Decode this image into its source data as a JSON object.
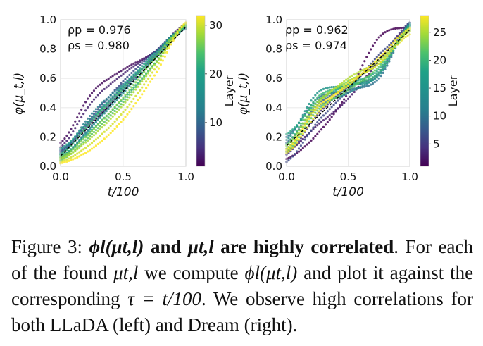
{
  "chart_data": [
    {
      "type": "line",
      "panel": "left",
      "xlabel": "t/100",
      "ylabel": "φ(μ_t,l)",
      "xlim": [
        0,
        1
      ],
      "ylim": [
        0,
        1
      ],
      "x_ticks": [
        "0.0",
        "0.5",
        "1.0"
      ],
      "y_ticks": [
        "0.0",
        "0.2",
        "0.4",
        "0.6",
        "0.8",
        "1.0"
      ],
      "grid": true,
      "annotations": [
        "ρp = 0.976",
        "ρs = 0.980"
      ],
      "colorbar": {
        "label": "Layer",
        "ticks": [
          "10",
          "20",
          "30"
        ],
        "range": [
          1,
          32
        ],
        "colormap": "viridis"
      },
      "reference_line": {
        "style": "dashed",
        "color": "#000000",
        "x": [
          0,
          1
        ],
        "y": [
          0.07,
          0.95
        ]
      },
      "series": [
        {
          "layer": 2,
          "x": [
            0,
            0.25,
            0.5,
            0.75,
            1.0
          ],
          "y": [
            0.16,
            0.5,
            0.66,
            0.78,
            0.97
          ]
        },
        {
          "layer": 4,
          "x": [
            0,
            0.25,
            0.5,
            0.75,
            1.0
          ],
          "y": [
            0.13,
            0.44,
            0.63,
            0.78,
            0.96
          ]
        },
        {
          "layer": 6,
          "x": [
            0,
            0.25,
            0.5,
            0.75,
            1.0
          ],
          "y": [
            0.1,
            0.3,
            0.52,
            0.75,
            0.95
          ]
        },
        {
          "layer": 8,
          "x": [
            0,
            0.25,
            0.5,
            0.75,
            1.0
          ],
          "y": [
            0.08,
            0.34,
            0.58,
            0.78,
            0.96
          ]
        },
        {
          "layer": 10,
          "x": [
            0,
            0.25,
            0.5,
            0.75,
            1.0
          ],
          "y": [
            0.11,
            0.32,
            0.54,
            0.74,
            0.95
          ]
        },
        {
          "layer": 12,
          "x": [
            0,
            0.25,
            0.5,
            0.75,
            1.0
          ],
          "y": [
            0.06,
            0.28,
            0.52,
            0.76,
            0.96
          ]
        },
        {
          "layer": 14,
          "x": [
            0,
            0.25,
            0.5,
            0.75,
            1.0
          ],
          "y": [
            0.09,
            0.36,
            0.56,
            0.74,
            0.94
          ]
        },
        {
          "layer": 16,
          "x": [
            0,
            0.25,
            0.5,
            0.75,
            1.0
          ],
          "y": [
            0.05,
            0.27,
            0.5,
            0.73,
            0.95
          ]
        },
        {
          "layer": 18,
          "x": [
            0,
            0.25,
            0.5,
            0.75,
            1.0
          ],
          "y": [
            0.12,
            0.33,
            0.55,
            0.77,
            0.96
          ]
        },
        {
          "layer": 20,
          "x": [
            0,
            0.25,
            0.5,
            0.75,
            1.0
          ],
          "y": [
            0.07,
            0.25,
            0.46,
            0.7,
            0.95
          ]
        },
        {
          "layer": 22,
          "x": [
            0,
            0.25,
            0.5,
            0.75,
            1.0
          ],
          "y": [
            0.08,
            0.31,
            0.53,
            0.75,
            0.96
          ]
        },
        {
          "layer": 24,
          "x": [
            0,
            0.25,
            0.5,
            0.75,
            1.0
          ],
          "y": [
            0.04,
            0.22,
            0.44,
            0.7,
            0.96
          ]
        },
        {
          "layer": 26,
          "x": [
            0,
            0.25,
            0.5,
            0.75,
            1.0
          ],
          "y": [
            0.06,
            0.24,
            0.47,
            0.73,
            0.97
          ]
        },
        {
          "layer": 28,
          "x": [
            0,
            0.25,
            0.5,
            0.75,
            1.0
          ],
          "y": [
            0.05,
            0.2,
            0.42,
            0.69,
            0.97
          ]
        },
        {
          "layer": 30,
          "x": [
            0,
            0.25,
            0.5,
            0.75,
            1.0
          ],
          "y": [
            0.03,
            0.16,
            0.37,
            0.66,
            0.98
          ]
        },
        {
          "layer": 32,
          "x": [
            0,
            0.25,
            0.5,
            0.75,
            1.0
          ],
          "y": [
            0.02,
            0.12,
            0.32,
            0.62,
            0.98
          ]
        }
      ]
    },
    {
      "type": "line",
      "panel": "right",
      "xlabel": "t/100",
      "ylabel": "φ(μ_t,l)",
      "xlim": [
        0,
        1
      ],
      "ylim": [
        0,
        1
      ],
      "x_ticks": [
        "0.0",
        "0.5",
        "1.0"
      ],
      "y_ticks": [
        "0.0",
        "0.2",
        "0.4",
        "0.6",
        "0.8",
        "1.0"
      ],
      "grid": true,
      "annotations": [
        "ρp = 0.962",
        "ρs = 0.974"
      ],
      "colorbar": {
        "label": "Layer",
        "ticks": [
          "5",
          "10",
          "15",
          "20",
          "25"
        ],
        "range": [
          1,
          28
        ],
        "colormap": "viridis"
      },
      "reference_line": {
        "style": "dashed",
        "color": "#000000",
        "x": [
          0,
          1
        ],
        "y": [
          0.14,
          0.93
        ]
      },
      "series": [
        {
          "layer": 1,
          "x": [
            0,
            0.25,
            0.5,
            0.75,
            1.0
          ],
          "y": [
            0.05,
            0.22,
            0.5,
            0.88,
            0.95
          ]
        },
        {
          "layer": 3,
          "x": [
            0,
            0.25,
            0.5,
            0.75,
            1.0
          ],
          "y": [
            0.1,
            0.28,
            0.46,
            0.72,
            0.96
          ]
        },
        {
          "layer": 5,
          "x": [
            0,
            0.25,
            0.5,
            0.75,
            1.0
          ],
          "y": [
            0.08,
            0.35,
            0.55,
            0.72,
            0.98
          ]
        },
        {
          "layer": 7,
          "x": [
            0,
            0.25,
            0.5,
            0.75,
            1.0
          ],
          "y": [
            0.03,
            0.3,
            0.52,
            0.76,
            0.93
          ]
        },
        {
          "layer": 9,
          "x": [
            0,
            0.25,
            0.5,
            0.75,
            1.0
          ],
          "y": [
            0.16,
            0.42,
            0.54,
            0.64,
            0.98
          ]
        },
        {
          "layer": 11,
          "x": [
            0,
            0.25,
            0.5,
            0.75,
            1.0
          ],
          "y": [
            0.2,
            0.46,
            0.52,
            0.6,
            0.97
          ]
        },
        {
          "layer": 13,
          "x": [
            0,
            0.25,
            0.5,
            0.75,
            1.0
          ],
          "y": [
            0.12,
            0.4,
            0.5,
            0.63,
            0.96
          ]
        },
        {
          "layer": 15,
          "x": [
            0,
            0.25,
            0.5,
            0.75,
            1.0
          ],
          "y": [
            0.18,
            0.5,
            0.55,
            0.62,
            0.97
          ]
        },
        {
          "layer": 17,
          "x": [
            0,
            0.25,
            0.5,
            0.75,
            1.0
          ],
          "y": [
            0.22,
            0.44,
            0.56,
            0.66,
            0.96
          ]
        },
        {
          "layer": 19,
          "x": [
            0,
            0.25,
            0.5,
            0.75,
            1.0
          ],
          "y": [
            0.15,
            0.47,
            0.55,
            0.64,
            0.95
          ]
        },
        {
          "layer": 21,
          "x": [
            0,
            0.25,
            0.5,
            0.75,
            1.0
          ],
          "y": [
            0.1,
            0.38,
            0.52,
            0.68,
            0.94
          ]
        },
        {
          "layer": 23,
          "x": [
            0,
            0.25,
            0.5,
            0.75,
            1.0
          ],
          "y": [
            0.14,
            0.44,
            0.58,
            0.7,
            0.93
          ]
        },
        {
          "layer": 25,
          "x": [
            0,
            0.25,
            0.5,
            0.75,
            1.0
          ],
          "y": [
            0.12,
            0.42,
            0.6,
            0.72,
            0.92
          ]
        },
        {
          "layer": 27,
          "x": [
            0,
            0.25,
            0.5,
            0.75,
            1.0
          ],
          "y": [
            0.09,
            0.36,
            0.57,
            0.7,
            0.9
          ]
        },
        {
          "layer": 28,
          "x": [
            0,
            0.25,
            0.5,
            0.75,
            1.0
          ],
          "y": [
            0.11,
            0.4,
            0.55,
            0.74,
            0.94
          ]
        }
      ]
    }
  ],
  "caption": {
    "figure_label": "Figure 3:",
    "phi_expr": "ϕl(μt,l)",
    "bold_and": "and",
    "mu_expr": "μt,l",
    "bold_rest": "are highly correlated",
    "text_1": ". For each of the found",
    "text_2": "we compute",
    "text_3": "and plot it against the corresponding",
    "tau_expr": "τ = t/100",
    "text_4": ". We observe high correlations for both LLaDA (left) and Dream (right)."
  }
}
